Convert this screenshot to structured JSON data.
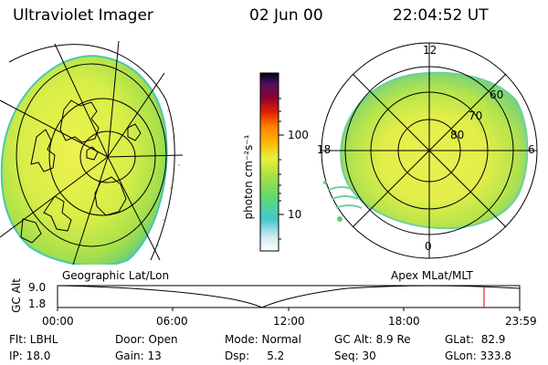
{
  "header": {
    "instrument": "Ultraviolet Imager",
    "date": "02 Jun 00",
    "time": "22:04:52 UT"
  },
  "colorbar": {
    "unit_label": "photon cm⁻²s⁻¹",
    "ticks": [
      "100",
      "10"
    ],
    "scale": "log"
  },
  "left_panel": {
    "label": "Geographic Lat/Lon"
  },
  "right_panel": {
    "label": "Apex MLat/MLT",
    "mlt_labels": [
      "12",
      "18",
      "6",
      "0"
    ],
    "mlat_labels": [
      "60",
      "70",
      "80"
    ]
  },
  "strip": {
    "ylabel": "GC Alt",
    "yticks": [
      "9.0",
      "1.8"
    ],
    "xticks": [
      "00:00",
      "06:00",
      "12:00",
      "18:00",
      "23:59"
    ]
  },
  "status": {
    "filter": "Flt: LBHL",
    "ip": "IP: 18.0",
    "door": "Door: Open",
    "gain": "Gain: 13",
    "mode": "Mode: Normal",
    "dsp": "Dsp:     5.2",
    "gc_alt": "GC Alt: 8.9 Re",
    "seq": "Seq: 30",
    "glat": "GLat:  82.9",
    "glon": "GLon: 333.8"
  },
  "colors": {
    "marker": "#cc0000",
    "aurora_low": "#a8e04a",
    "aurora_mid": "#e6f04a",
    "aurora_edge": "#3cc8c0"
  }
}
